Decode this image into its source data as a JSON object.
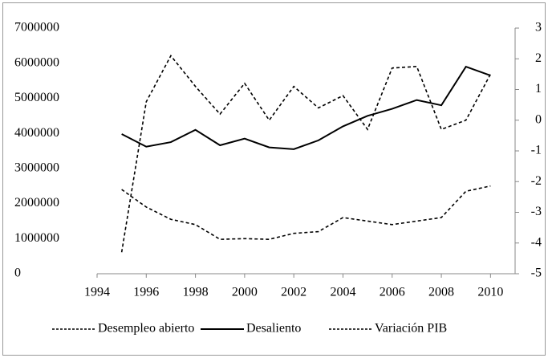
{
  "chart_data": {
    "type": "line",
    "x": [
      1995,
      1996,
      1997,
      1998,
      1999,
      2000,
      2001,
      2002,
      2003,
      2004,
      2005,
      2006,
      2007,
      2008,
      2009,
      2010
    ],
    "series": [
      {
        "name": "Desempleo abierto",
        "color": "#000000",
        "dashed": true,
        "values": [
          2400000,
          1900000,
          1550000,
          1400000,
          980000,
          1000000,
          980000,
          1150000,
          1200000,
          1600000,
          1500000,
          1400000,
          1500000,
          1600000,
          2350000,
          2500000
        ]
      },
      {
        "name": "Desaliento",
        "color": "#000000",
        "dashed": false,
        "values": [
          3980000,
          3620000,
          3750000,
          4100000,
          3660000,
          3850000,
          3600000,
          3550000,
          3800000,
          4200000,
          4500000,
          4700000,
          4950000,
          4800000,
          5900000,
          5650000
        ]
      },
      {
        "name": "Variación PIB",
        "color": "#000000",
        "dashed": true,
        "axis": "y2",
        "values": [
          -4.3,
          0.6,
          2.1,
          1.1,
          0.2,
          1.2,
          0,
          1.1,
          0.4,
          0.8,
          -0.3,
          1.7,
          1.75,
          -0.3,
          0,
          1.5
        ]
      }
    ],
    "xlim": [
      1994,
      2011
    ],
    "xticks": [
      1994,
      1996,
      1998,
      2000,
      2002,
      2004,
      2006,
      2008,
      2010
    ],
    "ylim": [
      0,
      7000000
    ],
    "yticks": [
      0,
      1000000,
      2000000,
      3000000,
      4000000,
      5000000,
      6000000,
      7000000
    ],
    "y2lim": [
      -5,
      3
    ],
    "y2ticks": [
      -5,
      -4,
      -3,
      -2,
      -1,
      0,
      1,
      2,
      3
    ],
    "legend": "bottom"
  }
}
